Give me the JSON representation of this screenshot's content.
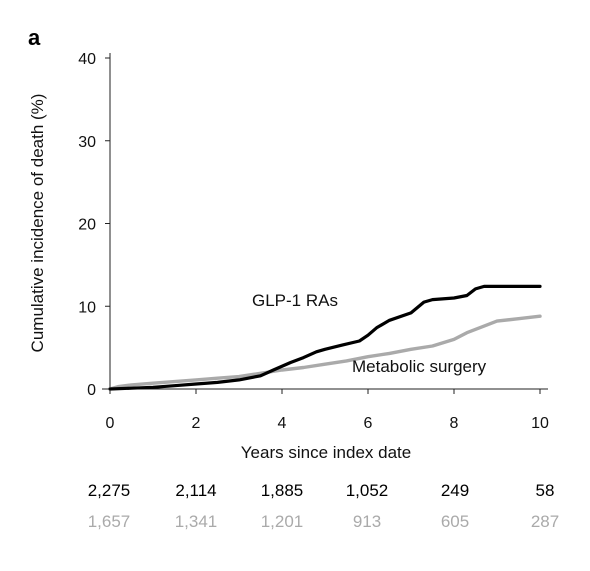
{
  "panel_label": "a",
  "chart_data": {
    "type": "line",
    "title": "",
    "xlabel": "Years since index date",
    "ylabel": "Cumulative incidence of death (%)",
    "xlim": [
      0,
      10
    ],
    "ylim": [
      0,
      40
    ],
    "xticks": [
      0,
      2,
      4,
      6,
      8,
      10
    ],
    "yticks": [
      0,
      10,
      20,
      30,
      40
    ],
    "grid": false,
    "series": [
      {
        "name": "GLP-1 RAs",
        "color": "#000000",
        "x": [
          0,
          0.5,
          1.0,
          1.5,
          2.0,
          2.5,
          3.0,
          3.5,
          3.8,
          4.2,
          4.5,
          4.8,
          5.0,
          5.4,
          5.8,
          6.0,
          6.2,
          6.5,
          7.0,
          7.3,
          7.5,
          8.0,
          8.3,
          8.5,
          8.7,
          9.0,
          9.5,
          10.0
        ],
        "values": [
          0,
          0.1,
          0.2,
          0.4,
          0.6,
          0.8,
          1.1,
          1.6,
          2.3,
          3.2,
          3.8,
          4.5,
          4.8,
          5.3,
          5.8,
          6.5,
          7.4,
          8.3,
          9.2,
          10.5,
          10.8,
          11.0,
          11.3,
          12.1,
          12.4,
          12.4,
          12.4,
          12.4
        ]
      },
      {
        "name": "Metabolic surgery",
        "color": "#aaaaaa",
        "x": [
          0,
          0.2,
          0.5,
          1.0,
          1.5,
          2.0,
          2.5,
          3.0,
          3.5,
          4.0,
          4.5,
          5.0,
          5.5,
          6.0,
          6.5,
          7.0,
          7.5,
          8.0,
          8.3,
          8.7,
          9.0,
          9.5,
          10.0
        ],
        "values": [
          0,
          0.3,
          0.5,
          0.7,
          0.9,
          1.1,
          1.3,
          1.5,
          1.9,
          2.3,
          2.6,
          3.0,
          3.4,
          3.9,
          4.3,
          4.8,
          5.2,
          6.0,
          6.8,
          7.6,
          8.2,
          8.5,
          8.8
        ]
      }
    ],
    "number_at_risk": {
      "glp1": [
        "2,275",
        "2,114",
        "1,885",
        "1,052",
        "249",
        "58"
      ],
      "surgery": [
        "1,657",
        "1,341",
        "1,201",
        "913",
        "605",
        "287"
      ]
    }
  }
}
